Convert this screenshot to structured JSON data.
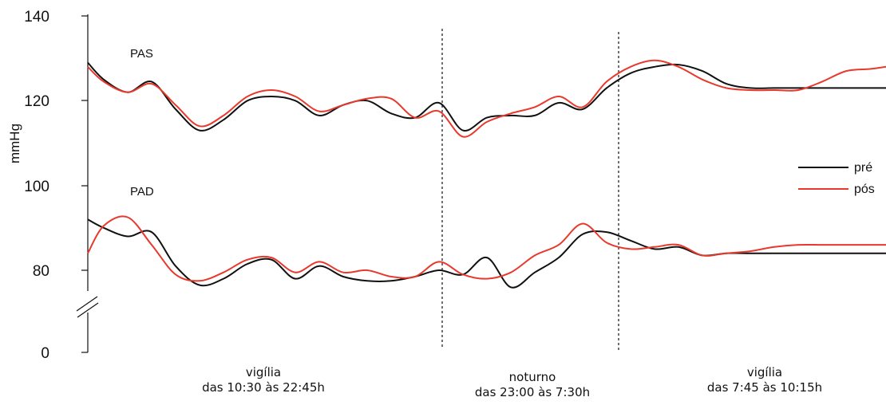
{
  "chart_data": {
    "type": "line",
    "ylabel": "mmHg",
    "y_ticks": [
      "140",
      "120",
      "100",
      "80",
      "0"
    ],
    "ylim": [
      70,
      140
    ],
    "axis_break": true,
    "x_ticks": [],
    "grid": false,
    "legend_position": "right",
    "annotations": {
      "pas": "PAS",
      "pad": "PAD"
    },
    "periods": [
      {
        "line1": "vigília",
        "line2": "das 10:30 às 22:45h"
      },
      {
        "line1": "noturno",
        "line2": "das 23:00 às 7:30h"
      },
      {
        "line1": "vigília",
        "line2": "das 7:45 às 10:15h"
      }
    ],
    "x": [
      0,
      0.02,
      0.05,
      0.08,
      0.11,
      0.14,
      0.17,
      0.2,
      0.23,
      0.26,
      0.29,
      0.32,
      0.35,
      0.38,
      0.41,
      0.44,
      0.47,
      0.5,
      0.53,
      0.56,
      0.59,
      0.62,
      0.65,
      0.68,
      0.71,
      0.74,
      0.77,
      0.8,
      0.83,
      0.86,
      0.89,
      0.92,
      0.95,
      0.98,
      1.0
    ],
    "series": [
      {
        "name": "pré",
        "color": "#111111",
        "group": "PAS",
        "values": [
          129,
          125,
          122,
          124.5,
          118,
          113,
          115.5,
          120,
          121,
          120,
          116.5,
          119,
          120,
          117,
          116,
          119.5,
          113,
          116,
          116.5,
          116.5,
          119.5,
          118,
          123,
          126.5,
          128,
          128.5,
          127,
          124,
          123,
          123,
          123,
          123,
          123,
          123,
          123
        ]
      },
      {
        "name": "pós",
        "color": "#e8392c",
        "group": "PAS",
        "values": [
          128,
          124.5,
          122,
          124,
          119,
          114,
          116.5,
          121,
          122.5,
          121,
          117.5,
          119,
          120.5,
          120.5,
          116,
          117.5,
          111.5,
          115,
          117,
          118.5,
          121,
          118.5,
          124.5,
          128,
          129.5,
          128,
          125,
          123,
          122.5,
          122.5,
          122.5,
          124.5,
          127,
          127.5,
          128
        ]
      },
      {
        "name": "pré",
        "color": "#111111",
        "group": "PAD",
        "values": [
          92,
          90,
          88,
          89,
          81,
          76.5,
          78,
          81.5,
          82.5,
          78,
          81,
          78.5,
          77.5,
          77.5,
          78.5,
          80,
          79,
          83,
          76,
          79.5,
          83,
          88.5,
          89,
          87,
          85,
          85.5,
          83.5,
          84,
          84,
          84,
          84,
          84,
          84,
          84,
          84
        ]
      },
      {
        "name": "pós",
        "color": "#e8392c",
        "group": "PAD",
        "values": [
          84,
          90.5,
          92.5,
          86,
          79,
          77.5,
          79.5,
          82.5,
          83,
          79.5,
          82,
          79.5,
          80,
          78.5,
          78.5,
          82,
          79,
          78,
          79.5,
          83.5,
          86,
          91,
          86.5,
          85,
          85.5,
          86,
          83.5,
          84,
          84.5,
          85.5,
          86,
          86,
          86,
          86,
          86
        ]
      }
    ]
  }
}
